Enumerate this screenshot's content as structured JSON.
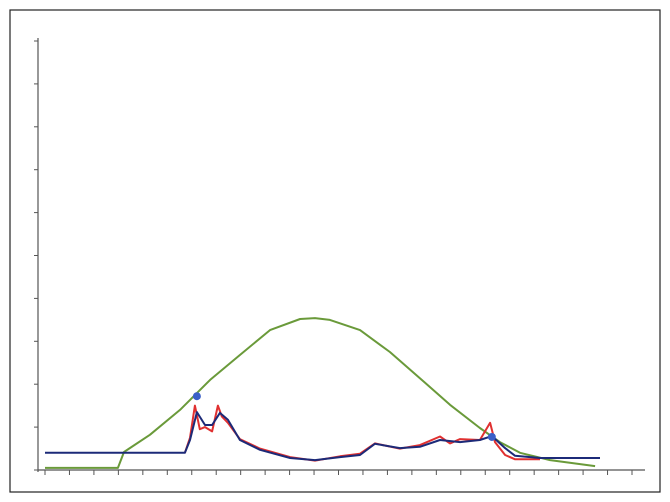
{
  "chart_data": {
    "type": "line",
    "xlim": [
      0,
      24
    ],
    "ylim": [
      0,
      10
    ],
    "xticks": [
      0,
      1,
      2,
      3,
      4,
      5,
      6,
      7,
      8,
      9,
      10,
      11,
      12,
      13,
      14,
      15,
      16,
      17,
      18,
      19,
      20,
      21,
      22,
      23,
      24
    ],
    "yticks": [
      0,
      1,
      2,
      3,
      4,
      5,
      6,
      7,
      8,
      9,
      10
    ],
    "series": [
      {
        "color": "#6a9a3a",
        "style": "line",
        "x": [
          0,
          2.98,
          3.23,
          4.29,
          5.52,
          6.75,
          7.97,
          9.2,
          10.43,
          11.04,
          11.65,
          12.88,
          14.1,
          15.33,
          16.56,
          17.78,
          18.6,
          19.42,
          20.65,
          22.49
        ],
        "values": [
          0.05,
          0.05,
          0.42,
          0.82,
          1.4,
          2.1,
          2.68,
          3.26,
          3.52,
          3.54,
          3.5,
          3.26,
          2.75,
          2.14,
          1.52,
          0.98,
          0.65,
          0.4,
          0.23,
          0.09
        ]
      },
      {
        "color": "#e03030",
        "style": "line",
        "x": [
          5.72,
          5.93,
          6.13,
          6.33,
          6.54,
          6.83,
          7.07,
          7.23,
          7.48,
          7.97,
          8.79,
          10.02,
          11.04,
          12.06,
          12.88,
          13.49,
          14.51,
          15.33,
          16.15,
          16.56,
          16.97,
          17.78,
          18.2,
          18.4,
          18.81,
          19.22,
          20.24
        ],
        "values": [
          0.4,
          0.75,
          1.5,
          0.95,
          1.0,
          0.9,
          1.5,
          1.25,
          1.1,
          0.72,
          0.5,
          0.3,
          0.22,
          0.32,
          0.38,
          0.62,
          0.5,
          0.58,
          0.78,
          0.62,
          0.72,
          0.7,
          1.1,
          0.65,
          0.35,
          0.25,
          0.25
        ]
      },
      {
        "color": "#1c2a78",
        "style": "line",
        "x": [
          0,
          5.72,
          5.93,
          6.21,
          6.54,
          6.83,
          7.15,
          7.48,
          7.97,
          8.79,
          10.02,
          11.04,
          12.06,
          12.88,
          13.49,
          14.51,
          15.33,
          16.15,
          16.97,
          17.78,
          18.27,
          18.81,
          19.22,
          20.24,
          22.69
        ],
        "values": [
          0.4,
          0.4,
          0.7,
          1.35,
          1.05,
          1.05,
          1.33,
          1.17,
          0.7,
          0.47,
          0.28,
          0.23,
          0.3,
          0.35,
          0.61,
          0.51,
          0.54,
          0.7,
          0.65,
          0.7,
          0.79,
          0.51,
          0.33,
          0.28,
          0.28
        ]
      },
      {
        "color": "#3a5fc8",
        "style": "marker",
        "x": [
          6.21,
          18.27
        ],
        "values": [
          1.72,
          0.77
        ]
      }
    ]
  }
}
